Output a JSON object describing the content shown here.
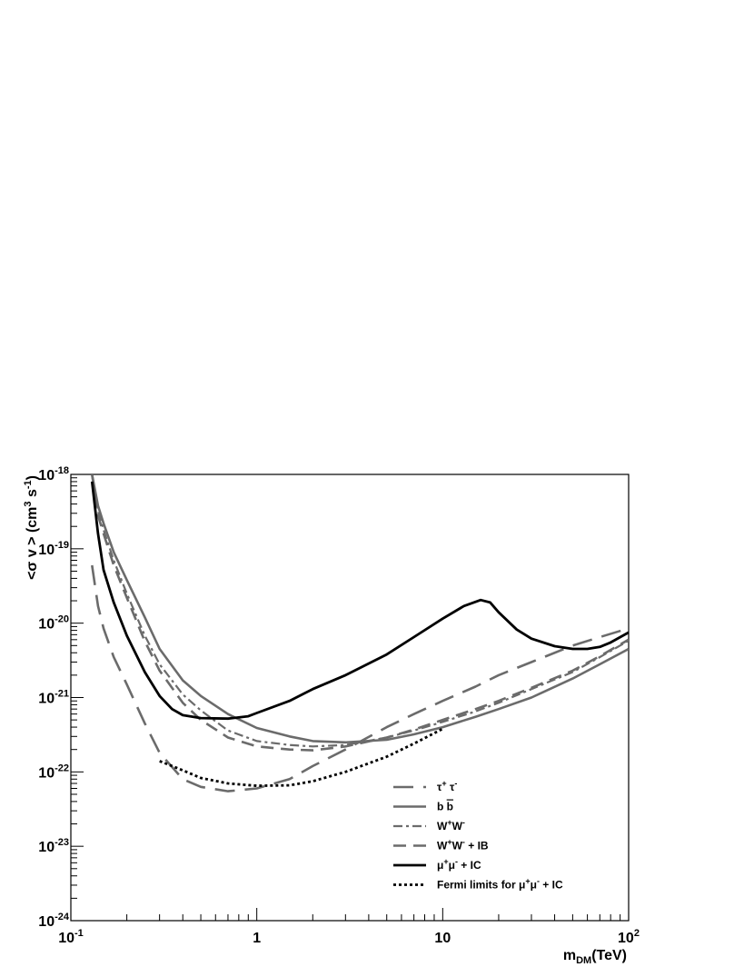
{
  "chart_data": {
    "type": "line",
    "xlabel": {
      "base": "m",
      "sub": "DM",
      "rest": "(TeV)"
    },
    "ylabel": {
      "p1": "<σ v > (cm",
      "sup1": "3",
      "p2": " s",
      "sup2": "-1",
      "p3": ")"
    },
    "x_scale": "log",
    "y_scale": "log",
    "xlim": [
      0.1,
      100
    ],
    "ylim": [
      1e-24,
      1e-18
    ],
    "x_ticks": [
      {
        "value": 0.1,
        "base": "10",
        "exp": "-1"
      },
      {
        "value": 1,
        "base": "1",
        "exp": ""
      },
      {
        "value": 10,
        "base": "10",
        "exp": ""
      },
      {
        "value": 100,
        "base": "10",
        "exp": "2"
      }
    ],
    "y_ticks": [
      {
        "value": 1e-18,
        "base": "10",
        "exp": "-18"
      },
      {
        "value": 1e-19,
        "base": "10",
        "exp": "-19"
      },
      {
        "value": 1e-20,
        "base": "10",
        "exp": "-20"
      },
      {
        "value": 1e-21,
        "base": "10",
        "exp": "-21"
      },
      {
        "value": 1e-22,
        "base": "10",
        "exp": "-22"
      },
      {
        "value": 1e-23,
        "base": "10",
        "exp": "-23"
      },
      {
        "value": 1e-24,
        "base": "10",
        "exp": "-24"
      }
    ],
    "grid": false,
    "legend_position": "lower-right",
    "series": [
      {
        "name": "τ⁺ τ⁻",
        "color": "#6b6b6b",
        "style": "longdash",
        "x": [
          0.13,
          0.14,
          0.15,
          0.17,
          0.2,
          0.25,
          0.3,
          0.4,
          0.5,
          0.7,
          1.0,
          1.5,
          2,
          3,
          5,
          7,
          10,
          15,
          20,
          30,
          50,
          70,
          100
        ],
        "y": [
          6e-20,
          1.7e-20,
          8.5e-21,
          3.5e-21,
          1.5e-21,
          4.5e-22,
          1.8e-22,
          8e-23,
          6.3e-23,
          5.5e-23,
          6e-23,
          8e-23,
          1.2e-22,
          2e-22,
          4e-22,
          6e-22,
          9e-22,
          1.4e-21,
          2e-21,
          3e-21,
          5e-21,
          6.5e-21,
          8.5e-21
        ]
      },
      {
        "name": "b b̄",
        "color": "#6b6b6b",
        "style": "solid",
        "x": [
          0.13,
          0.14,
          0.15,
          0.17,
          0.2,
          0.25,
          0.3,
          0.4,
          0.5,
          0.7,
          1.0,
          1.5,
          2,
          3,
          5,
          7,
          10,
          15,
          20,
          30,
          50,
          70,
          100
        ],
        "y": [
          1e-18,
          3.8e-19,
          2.2e-19,
          9e-20,
          3.8e-20,
          1.2e-20,
          4.5e-21,
          1.7e-21,
          1.05e-21,
          6e-22,
          3.9e-22,
          3e-22,
          2.6e-22,
          2.5e-22,
          2.7e-22,
          3.2e-22,
          4e-22,
          5.5e-22,
          7e-22,
          1e-21,
          1.8e-21,
          2.8e-21,
          4.5e-21
        ]
      },
      {
        "name": "W⁺W⁻",
        "color": "#6b6b6b",
        "style": "dashdot",
        "x": [
          0.13,
          0.14,
          0.15,
          0.17,
          0.2,
          0.25,
          0.3,
          0.4,
          0.5,
          0.7,
          1.0,
          1.5,
          2,
          3,
          5,
          7,
          10,
          15,
          20,
          30,
          50,
          70,
          100
        ],
        "y": [
          1e-18,
          3.2e-19,
          1.8e-19,
          7e-20,
          2.5e-20,
          6.8e-21,
          2.8e-21,
          1.1e-21,
          6.7e-22,
          3.6e-22,
          2.6e-22,
          2.3e-22,
          2.2e-22,
          2.3e-22,
          2.9e-22,
          3.6e-22,
          4.7e-22,
          6.5e-22,
          8.5e-22,
          1.3e-21,
          2.2e-21,
          3.5e-21,
          5.8e-21
        ]
      },
      {
        "name": "W⁺W⁻ + IB",
        "color": "#6b6b6b",
        "style": "dash",
        "x": [
          0.13,
          0.14,
          0.15,
          0.17,
          0.2,
          0.25,
          0.3,
          0.4,
          0.5,
          0.7,
          1.0,
          1.5,
          2,
          3,
          5,
          7,
          10,
          15,
          20,
          30,
          50,
          70,
          100
        ],
        "y": [
          1e-18,
          2.8e-19,
          1.6e-19,
          6e-20,
          2.2e-20,
          5.7e-21,
          2.3e-21,
          8.5e-22,
          5e-22,
          2.9e-22,
          2.2e-22,
          2e-22,
          1.95e-22,
          2.2e-22,
          2.9e-22,
          3.7e-22,
          5e-22,
          7e-22,
          9e-22,
          1.35e-21,
          2.3e-21,
          3.6e-21,
          6e-21
        ]
      },
      {
        "name": "μ⁺μ⁻ + IC",
        "color": "#000000",
        "style": "solid-thick",
        "x": [
          0.13,
          0.14,
          0.15,
          0.17,
          0.2,
          0.25,
          0.3,
          0.35,
          0.4,
          0.5,
          0.7,
          0.9,
          1.0,
          1.5,
          2,
          3,
          5,
          7,
          10,
          13,
          16,
          18,
          20,
          25,
          30,
          40,
          50,
          60,
          70,
          80,
          100
        ],
        "y": [
          8e-19,
          1.6e-19,
          5.2e-20,
          1.9e-20,
          6.8e-21,
          2.2e-21,
          1.05e-21,
          7e-22,
          5.8e-22,
          5.3e-22,
          5.2e-22,
          5.6e-22,
          6.2e-22,
          9e-22,
          1.3e-21,
          2e-21,
          3.8e-21,
          6.5e-21,
          1.15e-20,
          1.7e-20,
          2.05e-20,
          1.9e-20,
          1.4e-20,
          8.2e-21,
          6.2e-21,
          4.9e-21,
          4.5e-21,
          4.5e-21,
          4.8e-21,
          5.5e-21,
          7.5e-21
        ]
      },
      {
        "name": "Fermi limits for μ⁺μ⁻ + IC",
        "color": "#000000",
        "style": "dotted",
        "x": [
          0.3,
          0.4,
          0.5,
          0.7,
          1.0,
          1.5,
          2,
          3,
          5,
          7,
          10
        ],
        "y": [
          1.4e-22,
          1.05e-22,
          8.3e-23,
          7e-23,
          6.5e-23,
          6.6e-23,
          7.5e-23,
          1e-22,
          1.6e-22,
          2.4e-22,
          3.8e-22
        ]
      }
    ],
    "legend": [
      {
        "key": "tau",
        "style": "longdash",
        "color": "#6b6b6b",
        "parts": [
          {
            "t": "τ"
          },
          {
            "t": "+",
            "sup": true
          },
          {
            "t": " τ"
          },
          {
            "t": "-",
            "sup": true
          }
        ]
      },
      {
        "key": "bb",
        "style": "solid",
        "color": "#6b6b6b",
        "parts": [
          {
            "t": "b "
          },
          {
            "t": "b",
            "over": true
          }
        ]
      },
      {
        "key": "ww",
        "style": "dashdot",
        "color": "#6b6b6b",
        "parts": [
          {
            "t": "W"
          },
          {
            "t": "+",
            "sup": true
          },
          {
            "t": "W"
          },
          {
            "t": "-",
            "sup": true
          }
        ]
      },
      {
        "key": "wwib",
        "style": "dash",
        "color": "#6b6b6b",
        "parts": [
          {
            "t": "W"
          },
          {
            "t": "+",
            "sup": true
          },
          {
            "t": "W"
          },
          {
            "t": "-",
            "sup": true
          },
          {
            "t": " + IB"
          }
        ]
      },
      {
        "key": "mumu",
        "style": "solid-thick",
        "color": "#000000",
        "parts": [
          {
            "t": "μ"
          },
          {
            "t": "+",
            "sup": true
          },
          {
            "t": "μ"
          },
          {
            "t": "-",
            "sup": true
          },
          {
            "t": " + IC"
          }
        ]
      },
      {
        "key": "fermi",
        "style": "dotted",
        "color": "#000000",
        "parts": [
          {
            "t": "Fermi limits for μ"
          },
          {
            "t": "+",
            "sup": true
          },
          {
            "t": "μ"
          },
          {
            "t": "-",
            "sup": true
          },
          {
            "t": " + IC"
          }
        ]
      }
    ]
  }
}
